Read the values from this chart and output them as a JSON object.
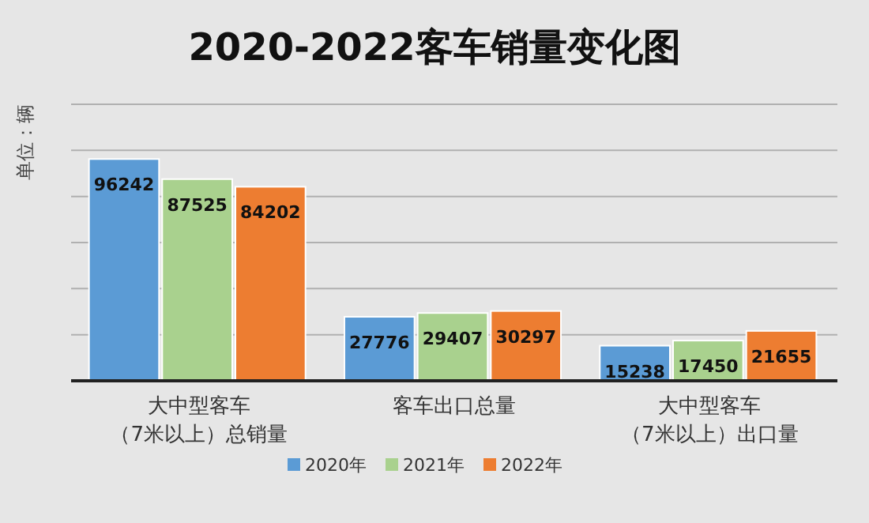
{
  "chart_data": {
    "type": "bar",
    "title": "2020-2022客车销量变化图",
    "ylabel": "单位：辆",
    "categories": [
      "大中型客车（7米以上）总销量",
      "客车出口总量",
      "大中型客车（7米以上）出口量"
    ],
    "series": [
      {
        "name": "2020年",
        "color": "#5b9bd5",
        "values": [
          96242,
          27776,
          15238
        ]
      },
      {
        "name": "2021年",
        "color": "#a9d18e",
        "values": [
          87525,
          29407,
          17450
        ]
      },
      {
        "name": "2022年",
        "color": "#ed7d31",
        "values": [
          84202,
          30297,
          21655
        ]
      }
    ],
    "ylim": [
      0,
      120000
    ],
    "yticks": [
      {
        "value": 0,
        "label": null
      },
      {
        "value": 20000,
        "label": null
      },
      {
        "value": 40000,
        "label": null
      },
      {
        "value": 60000,
        "label": null
      },
      {
        "value": 80000,
        "label": null
      },
      {
        "value": 100000,
        "label": null
      },
      {
        "value": 120000,
        "label": null
      }
    ],
    "grid": "y",
    "data_labels": true,
    "legend": "bottom"
  }
}
